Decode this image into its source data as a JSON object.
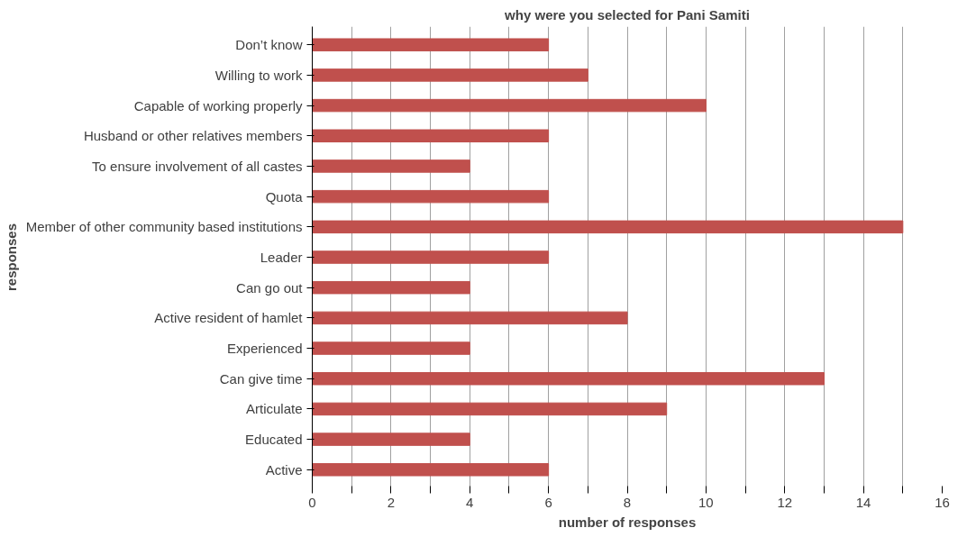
{
  "chart_data": {
    "type": "bar",
    "orientation": "horizontal",
    "title": "why were you selected for Pani Samiti",
    "xlabel": "number of responses",
    "ylabel": "responses",
    "categories": [
      "Don’t know",
      "Willing to work",
      "Capable of working properly",
      "Husband or other relatives members",
      "To ensure involvement of all castes",
      "Quota",
      "Member of other community based institutions",
      "Leader",
      "Can go out",
      "Active resident of hamlet",
      "Experienced",
      "Can give time",
      "Articulate",
      "Educated",
      "Active"
    ],
    "values": [
      6,
      7,
      10,
      6,
      4,
      6,
      15,
      6,
      4,
      8,
      4,
      13,
      9,
      4,
      6
    ],
    "color": "#c0504d",
    "xlim": [
      0,
      16
    ],
    "xticks": [
      0,
      {
        "value": 1,
        "label": null
      },
      2,
      {
        "value": 3,
        "label": null
      },
      4,
      {
        "value": 5,
        "label": null
      },
      6,
      {
        "value": 7,
        "label": null
      },
      8,
      {
        "value": 9,
        "label": null
      },
      10,
      {
        "value": 11,
        "label": null
      },
      12,
      {
        "value": 13,
        "label": null
      },
      14,
      {
        "value": 15,
        "label": null
      },
      16
    ],
    "grid": "x"
  }
}
